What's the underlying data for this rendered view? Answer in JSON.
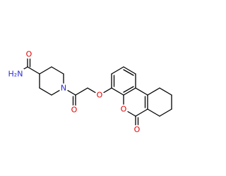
{
  "atoms": [
    "H₂N",
    "O",
    "N",
    "O",
    "O",
    "O",
    "O"
  ]
}
